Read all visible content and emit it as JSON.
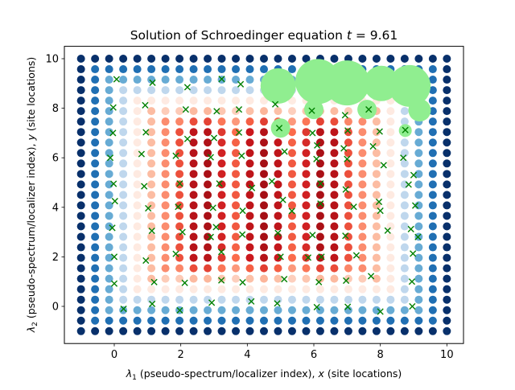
{
  "chart_data": {
    "type": "scatter",
    "title": "Solution of Schroedinger equation t = 9.61",
    "title_parts": {
      "text": "Solution of Schroedinger equation ",
      "var": "t",
      "eq": " = 9.61"
    },
    "xlabel": "λ1 (pseudo-spectrum/localizer index), x (site locations)",
    "xlabel_parts": {
      "sym": "λ",
      "sub": "1",
      "rest": " (pseudo-spectrum/localizer index), ",
      "var": "x",
      "tail": " (site locations)"
    },
    "ylabel": "λ2 (pseudo-spectrum/localizer index), y (site locations)",
    "ylabel_parts": {
      "sym": "λ",
      "sub": "2",
      "rest": " (pseudo-spectrum/localizer index), ",
      "var": "y",
      "tail": " (site locations)"
    },
    "xlim": [
      -1.5,
      10.5
    ],
    "ylim": [
      -1.5,
      10.5
    ],
    "xticks": [
      "0",
      "2",
      "4",
      "6",
      "8",
      "10"
    ],
    "yticks": [
      "0",
      "2",
      "4",
      "6",
      "8",
      "10"
    ],
    "grid": false,
    "heatmap_grid": {
      "x_start": -1,
      "x_end": 10,
      "y_start": -1,
      "y_end": 10,
      "step": 0.42308,
      "description_colormaps": [
        "Blues",
        "Reds"
      ]
    },
    "series": [
      {
        "marker": "x",
        "color": "#008000",
        "points": [
          [
            0.07,
            9.17
          ],
          [
            1.15,
            9.03
          ],
          [
            2.2,
            8.85
          ],
          [
            3.23,
            9.18
          ],
          [
            3.8,
            8.97
          ],
          [
            4.84,
            8.16
          ],
          [
            5.94,
            7.9
          ],
          [
            6.94,
            7.72
          ],
          [
            7.65,
            7.95
          ],
          [
            8.75,
            7.12
          ],
          [
            -0.03,
            8.03
          ],
          [
            0.93,
            8.12
          ],
          [
            2.15,
            7.95
          ],
          [
            3.08,
            7.88
          ],
          [
            3.75,
            7.95
          ],
          [
            4.96,
            7.2
          ],
          [
            5.96,
            7.0
          ],
          [
            7.02,
            7.1
          ],
          [
            7.98,
            7.06
          ],
          [
            8.69,
            6.0
          ],
          [
            -0.04,
            7.0
          ],
          [
            0.95,
            7.03
          ],
          [
            2.2,
            6.76
          ],
          [
            3.0,
            6.8
          ],
          [
            3.75,
            7.02
          ],
          [
            5.12,
            6.25
          ],
          [
            6.1,
            6.5
          ],
          [
            6.9,
            6.38
          ],
          [
            7.78,
            6.46
          ],
          [
            9.0,
            5.3
          ],
          [
            -0.12,
            6.0
          ],
          [
            0.82,
            6.15
          ],
          [
            1.85,
            6.08
          ],
          [
            2.9,
            6.02
          ],
          [
            3.83,
            6.08
          ],
          [
            4.74,
            5.05
          ],
          [
            6.08,
            5.95
          ],
          [
            7.0,
            5.95
          ],
          [
            8.1,
            5.7
          ],
          [
            8.85,
            4.92
          ],
          [
            -0.02,
            4.95
          ],
          [
            0.9,
            4.85
          ],
          [
            1.97,
            4.96
          ],
          [
            3.16,
            4.96
          ],
          [
            4.14,
            4.78
          ],
          [
            5.07,
            4.3
          ],
          [
            6.2,
            4.96
          ],
          [
            6.96,
            4.72
          ],
          [
            7.96,
            4.22
          ],
          [
            9.05,
            4.07
          ],
          [
            0.02,
            4.25
          ],
          [
            1.02,
            3.96
          ],
          [
            1.92,
            4.02
          ],
          [
            2.97,
            3.98
          ],
          [
            3.86,
            3.86
          ],
          [
            5.34,
            3.85
          ],
          [
            6.2,
            4.15
          ],
          [
            7.2,
            4.02
          ],
          [
            8.0,
            3.86
          ],
          [
            8.92,
            3.12
          ],
          [
            -0.06,
            3.17
          ],
          [
            1.13,
            3.05
          ],
          [
            2.05,
            3.0
          ],
          [
            3.06,
            3.2
          ],
          [
            3.85,
            2.9
          ],
          [
            4.92,
            2.96
          ],
          [
            5.96,
            2.88
          ],
          [
            6.95,
            2.85
          ],
          [
            8.22,
            3.06
          ],
          [
            9.13,
            2.8
          ],
          [
            0.0,
            2.0
          ],
          [
            0.95,
            1.85
          ],
          [
            1.85,
            2.12
          ],
          [
            2.9,
            2.8
          ],
          [
            3.22,
            2.2
          ],
          [
            5.0,
            2.0
          ],
          [
            5.83,
            1.97
          ],
          [
            6.23,
            2.0
          ],
          [
            7.28,
            2.06
          ],
          [
            8.98,
            2.13
          ],
          [
            0.0,
            0.92
          ],
          [
            1.2,
            0.98
          ],
          [
            2.12,
            0.95
          ],
          [
            3.22,
            1.05
          ],
          [
            3.86,
            0.97
          ],
          [
            5.11,
            1.1
          ],
          [
            6.15,
            0.98
          ],
          [
            6.97,
            1.04
          ],
          [
            7.72,
            1.22
          ],
          [
            8.95,
            1.0
          ],
          [
            0.28,
            -0.1
          ],
          [
            1.14,
            0.1
          ],
          [
            1.97,
            -0.16
          ],
          [
            2.93,
            0.15
          ],
          [
            4.12,
            0.2
          ],
          [
            4.9,
            0.12
          ],
          [
            6.09,
            -0.03
          ],
          [
            7.02,
            -0.02
          ],
          [
            8.0,
            -0.21
          ],
          [
            8.96,
            0.0
          ]
        ]
      },
      {
        "marker": "o",
        "color": "#90ee90",
        "points": [
          [
            4.93,
            8.9
          ],
          [
            6.12,
            9.08
          ],
          [
            7.0,
            9.02
          ],
          [
            8.03,
            9.0
          ],
          [
            8.88,
            8.9
          ],
          [
            5.0,
            7.2
          ],
          [
            6.0,
            7.95
          ],
          [
            7.6,
            7.95
          ],
          [
            8.75,
            7.1
          ],
          [
            9.18,
            7.92
          ]
        ],
        "sizes": [
          22,
          28,
          28,
          22,
          26,
          12,
          12,
          12,
          8,
          14
        ]
      }
    ],
    "colors": {
      "blue_dark": "#08306b",
      "red_dark": "#a50f15",
      "marker_x": "#008000",
      "circle_light_green": "#90ee90"
    }
  }
}
